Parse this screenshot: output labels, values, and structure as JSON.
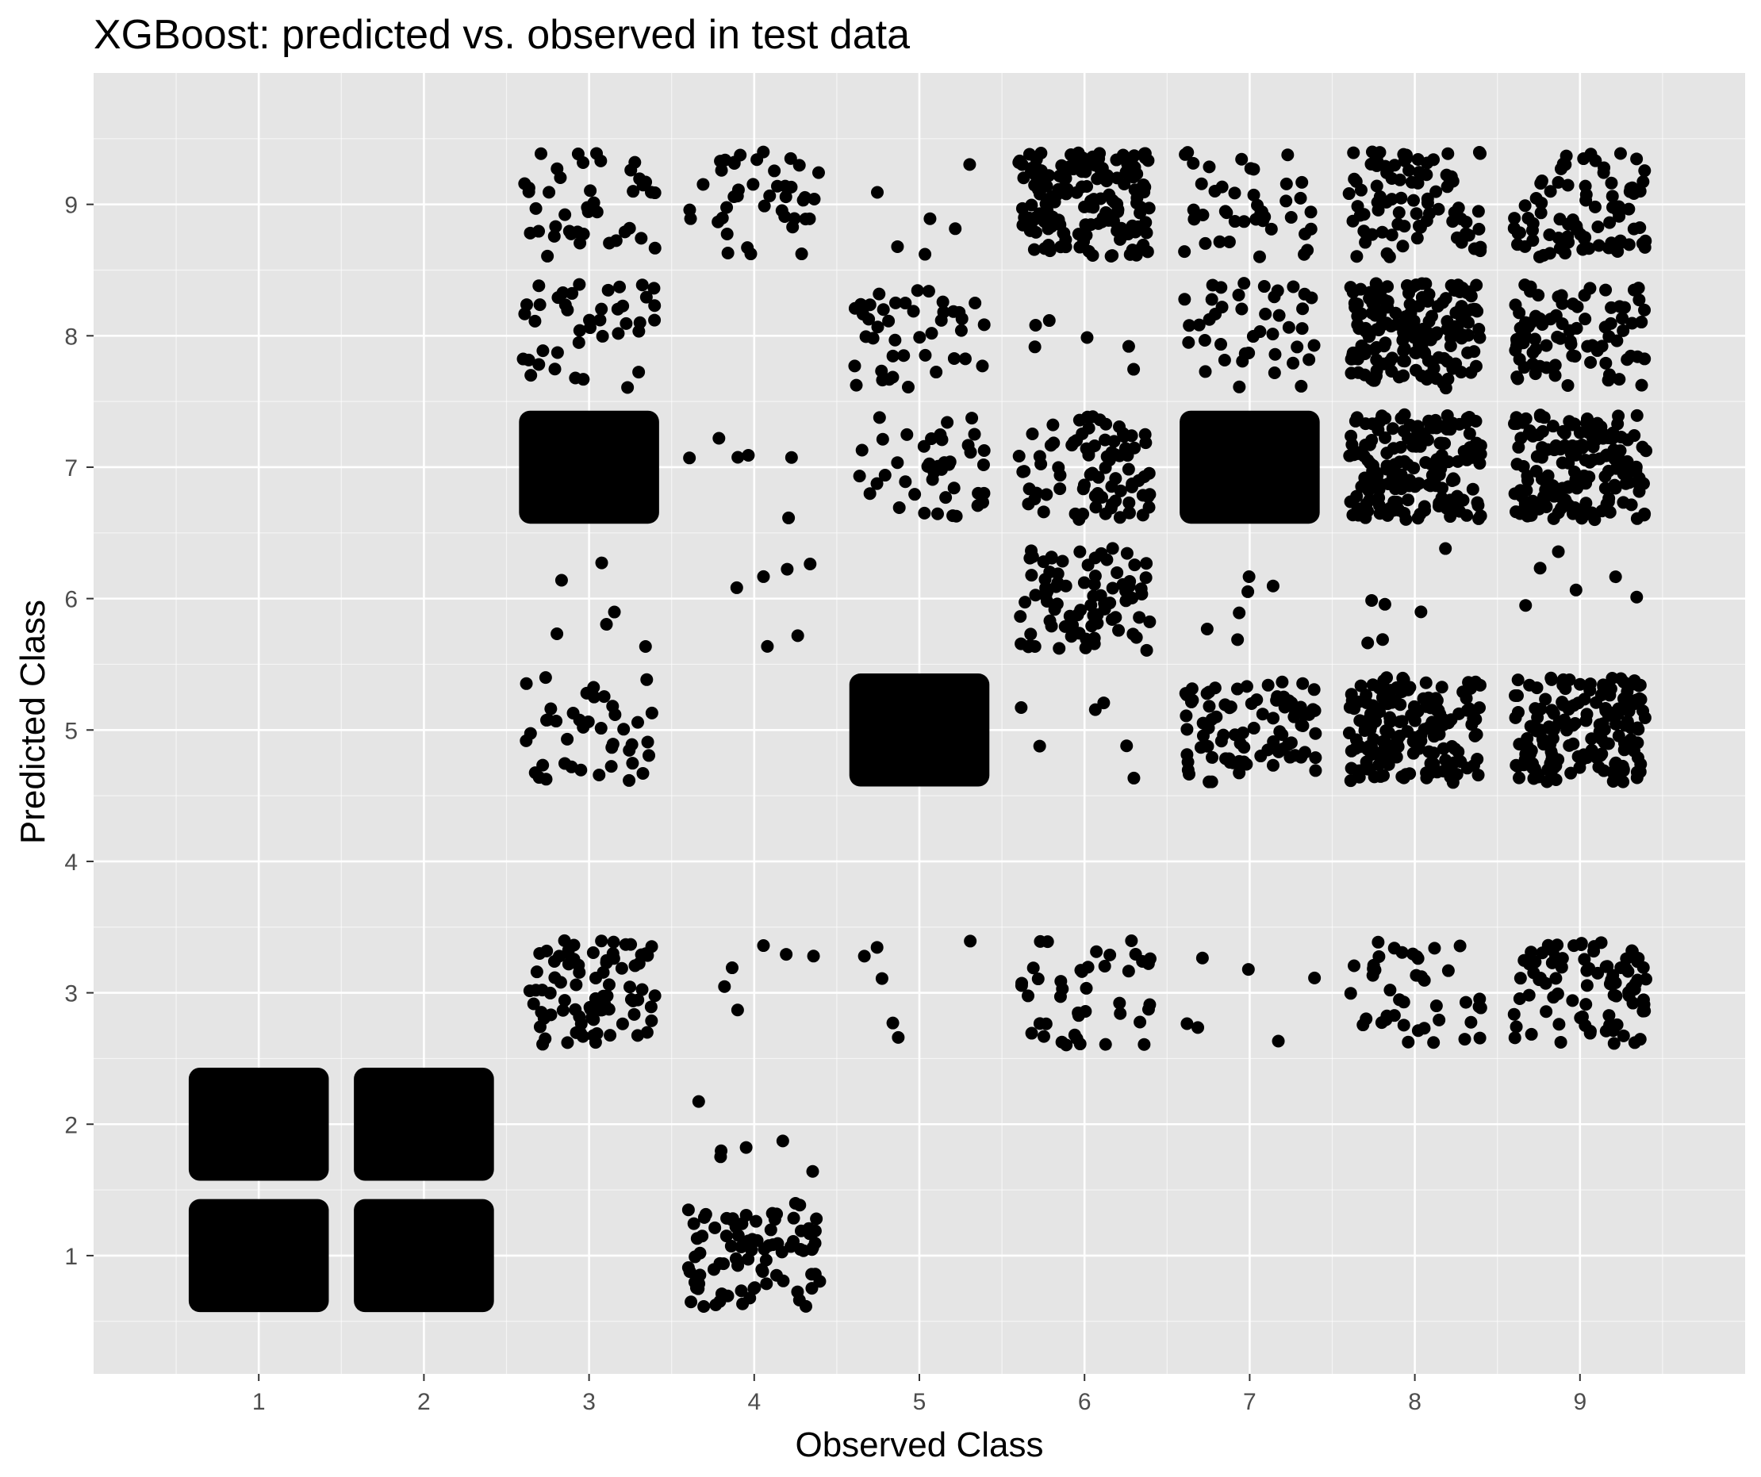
{
  "chart_data": {
    "type": "scatter",
    "title": "XGBoost: predicted vs. observed in test data",
    "xlabel": "Observed Class",
    "ylabel": "Predicted Class",
    "x_ticks": [
      1,
      2,
      3,
      4,
      5,
      6,
      7,
      8,
      9
    ],
    "y_ticks": [
      1,
      2,
      3,
      4,
      5,
      6,
      7,
      8,
      9
    ],
    "xlim": [
      0,
      10
    ],
    "ylim": [
      0.1,
      10.0
    ],
    "grid": true,
    "background": "#e5e5e5",
    "grid_color": "#ffffff",
    "point_color": "#000000",
    "jitter": 0.4,
    "clusters": [
      {
        "observed": 1,
        "predicted": 1,
        "density": "dense"
      },
      {
        "observed": 1,
        "predicted": 2,
        "density": "dense"
      },
      {
        "observed": 2,
        "predicted": 1,
        "density": "dense"
      },
      {
        "observed": 2,
        "predicted": 2,
        "density": "dense"
      },
      {
        "observed": 3,
        "predicted": 3,
        "density": "medium"
      },
      {
        "observed": 3,
        "predicted": 5,
        "density": "light"
      },
      {
        "observed": 3,
        "predicted": 6,
        "density": "sparse"
      },
      {
        "observed": 3,
        "predicted": 7,
        "density": "dense"
      },
      {
        "observed": 3,
        "predicted": 8,
        "density": "light"
      },
      {
        "observed": 3,
        "predicted": 9,
        "density": "light"
      },
      {
        "observed": 4,
        "predicted": 1,
        "density": "medium"
      },
      {
        "observed": 4,
        "predicted": 2,
        "density": "sparse"
      },
      {
        "observed": 4,
        "predicted": 3,
        "density": "sparse"
      },
      {
        "observed": 4,
        "predicted": 6,
        "density": "sparse"
      },
      {
        "observed": 4,
        "predicted": 7,
        "density": "sparse"
      },
      {
        "observed": 4,
        "predicted": 9,
        "density": "light"
      },
      {
        "observed": 5,
        "predicted": 3,
        "density": "sparse"
      },
      {
        "observed": 5,
        "predicted": 5,
        "density": "dense"
      },
      {
        "observed": 5,
        "predicted": 7,
        "density": "light"
      },
      {
        "observed": 5,
        "predicted": 8,
        "density": "light"
      },
      {
        "observed": 5,
        "predicted": 9,
        "density": "sparse"
      },
      {
        "observed": 6,
        "predicted": 3,
        "density": "light"
      },
      {
        "observed": 6,
        "predicted": 5,
        "density": "sparse"
      },
      {
        "observed": 6,
        "predicted": 6,
        "density": "medium"
      },
      {
        "observed": 6,
        "predicted": 7,
        "density": "medium"
      },
      {
        "observed": 6,
        "predicted": 8,
        "density": "sparse"
      },
      {
        "observed": 6,
        "predicted": 9,
        "density": "heavy"
      },
      {
        "observed": 7,
        "predicted": 3,
        "density": "sparse"
      },
      {
        "observed": 7,
        "predicted": 5,
        "density": "medium"
      },
      {
        "observed": 7,
        "predicted": 6,
        "density": "sparse"
      },
      {
        "observed": 7,
        "predicted": 7,
        "density": "dense"
      },
      {
        "observed": 7,
        "predicted": 8,
        "density": "light"
      },
      {
        "observed": 7,
        "predicted": 9,
        "density": "light"
      },
      {
        "observed": 8,
        "predicted": 3,
        "density": "light"
      },
      {
        "observed": 8,
        "predicted": 5,
        "density": "heavy"
      },
      {
        "observed": 8,
        "predicted": 6,
        "density": "sparse"
      },
      {
        "observed": 8,
        "predicted": 7,
        "density": "heavy"
      },
      {
        "observed": 8,
        "predicted": 8,
        "density": "heavy"
      },
      {
        "observed": 8,
        "predicted": 9,
        "density": "medium"
      },
      {
        "observed": 9,
        "predicted": 3,
        "density": "medium"
      },
      {
        "observed": 9,
        "predicted": 5,
        "density": "heavy"
      },
      {
        "observed": 9,
        "predicted": 6,
        "density": "sparse"
      },
      {
        "observed": 9,
        "predicted": 7,
        "density": "heavy"
      },
      {
        "observed": 9,
        "predicted": 8,
        "density": "medium"
      },
      {
        "observed": 9,
        "predicted": 9,
        "density": "medium"
      }
    ]
  }
}
